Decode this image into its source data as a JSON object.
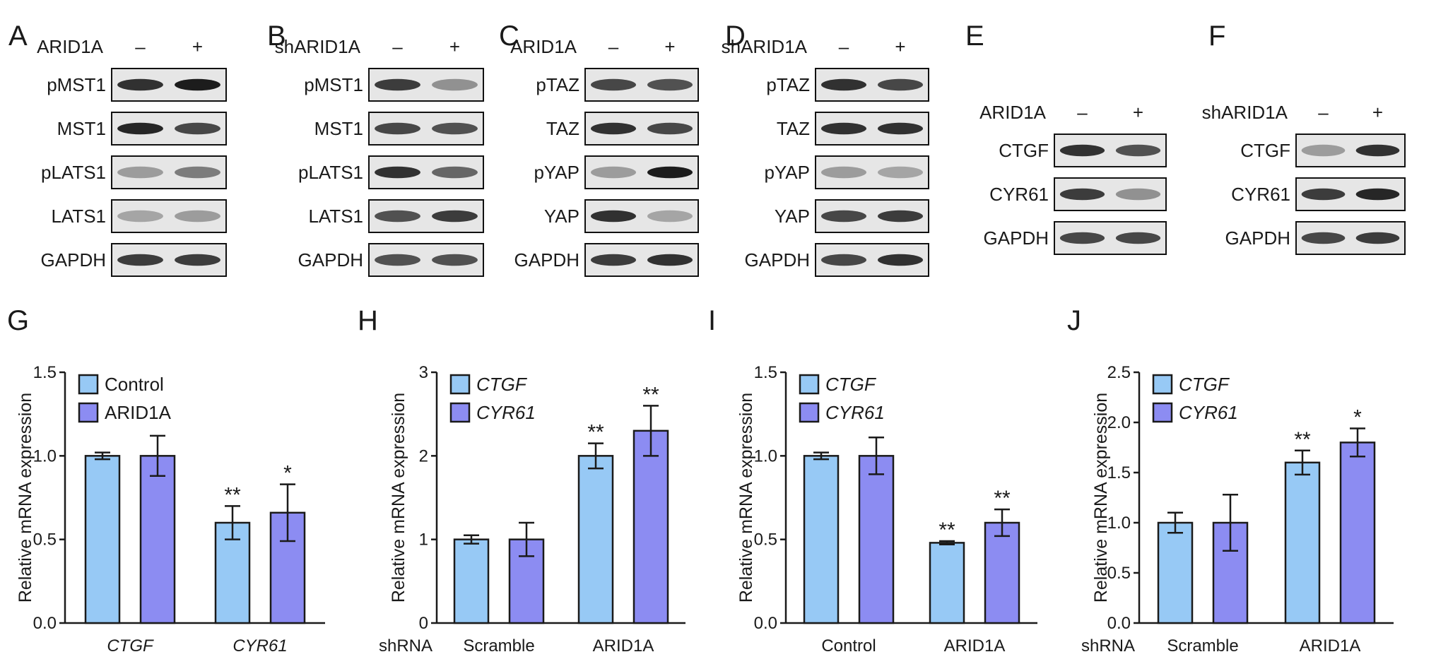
{
  "colors": {
    "light_blue": "#97c9f5",
    "purple": "#8c8cf2",
    "axis": "#1a1a1a"
  },
  "blots": [
    {
      "panel": "A",
      "treatment": "ARID1A",
      "lane_marks": [
        "–",
        "+"
      ],
      "proteins": [
        "pMST1",
        "MST1",
        "pLATS1",
        "LATS1",
        "GAPDH"
      ]
    },
    {
      "panel": "B",
      "treatment": "shARID1A",
      "lane_marks": [
        "–",
        "+"
      ],
      "proteins": [
        "pMST1",
        "MST1",
        "pLATS1",
        "LATS1",
        "GAPDH"
      ]
    },
    {
      "panel": "C",
      "treatment": "ARID1A",
      "lane_marks": [
        "–",
        "+"
      ],
      "proteins": [
        "pTAZ",
        "TAZ",
        "pYAP",
        "YAP",
        "GAPDH"
      ]
    },
    {
      "panel": "D",
      "treatment": "shARID1A",
      "lane_marks": [
        "–",
        "+"
      ],
      "proteins": [
        "pTAZ",
        "TAZ",
        "pYAP",
        "YAP",
        "GAPDH"
      ]
    },
    {
      "panel": "E",
      "treatment": "ARID1A",
      "lane_marks": [
        "–",
        "+"
      ],
      "proteins": [
        "CTGF",
        "CYR61",
        "GAPDH"
      ]
    },
    {
      "panel": "F",
      "treatment": "shARID1A",
      "lane_marks": [
        "–",
        "+"
      ],
      "proteins": [
        "CTGF",
        "CYR61",
        "GAPDH"
      ]
    }
  ],
  "chart_data": [
    {
      "panel": "G",
      "type": "bar",
      "ylabel": "Relative mRNA expression",
      "ylim": [
        0,
        1.5
      ],
      "yticks": [
        "0.0",
        "0.5",
        "1.0",
        "1.5"
      ],
      "x_prefix": "",
      "categories": [
        "CTGF",
        "CYR61"
      ],
      "categories_italic": true,
      "legend_italic": false,
      "legend_position": "top-left",
      "series": [
        {
          "name": "Control",
          "values": [
            1.0,
            0.6
          ],
          "errors": [
            0.02,
            0.1
          ],
          "sig": [
            "",
            "**"
          ]
        },
        {
          "name": "ARID1A",
          "values": [
            1.0,
            0.66
          ],
          "errors": [
            0.12,
            0.17
          ],
          "sig": [
            "",
            "*"
          ]
        }
      ]
    },
    {
      "panel": "H",
      "type": "bar",
      "ylabel": "Relative mRNA expression",
      "ylim": [
        0,
        3
      ],
      "yticks": [
        "0",
        "1",
        "2",
        "3"
      ],
      "x_prefix": "shRNA",
      "categories": [
        "Scramble",
        "ARID1A"
      ],
      "categories_italic": false,
      "legend_italic": true,
      "legend_position": "top-left",
      "series": [
        {
          "name": "CTGF",
          "values": [
            1.0,
            2.0
          ],
          "errors": [
            0.05,
            0.15
          ],
          "sig": [
            "",
            "**"
          ]
        },
        {
          "name": "CYR61",
          "values": [
            1.0,
            2.3
          ],
          "errors": [
            0.2,
            0.3
          ],
          "sig": [
            "",
            "**"
          ]
        }
      ]
    },
    {
      "panel": "I",
      "type": "bar",
      "ylabel": "Relative mRNA expression",
      "ylim": [
        0,
        1.5
      ],
      "yticks": [
        "0.0",
        "0.5",
        "1.0",
        "1.5"
      ],
      "x_prefix": "",
      "categories": [
        "Control",
        "ARID1A"
      ],
      "categories_italic": false,
      "legend_italic": true,
      "legend_position": "top-left",
      "series": [
        {
          "name": "CTGF",
          "values": [
            1.0,
            0.48
          ],
          "errors": [
            0.02,
            0.01
          ],
          "sig": [
            "",
            "**"
          ]
        },
        {
          "name": "CYR61",
          "values": [
            1.0,
            0.6
          ],
          "errors": [
            0.11,
            0.08
          ],
          "sig": [
            "",
            "**"
          ]
        }
      ]
    },
    {
      "panel": "J",
      "type": "bar",
      "ylabel": "Relative mRNA expression",
      "ylim": [
        0,
        2.5
      ],
      "yticks": [
        "0.0",
        "0.5",
        "1.0",
        "1.5",
        "2.0",
        "2.5"
      ],
      "x_prefix": "shRNA",
      "categories": [
        "Scramble",
        "ARID1A"
      ],
      "categories_italic": false,
      "legend_italic": true,
      "legend_position": "top-left",
      "series": [
        {
          "name": "CTGF",
          "values": [
            1.0,
            1.6
          ],
          "errors": [
            0.1,
            0.12
          ],
          "sig": [
            "",
            "**"
          ]
        },
        {
          "name": "CYR61",
          "values": [
            1.0,
            1.8
          ],
          "errors": [
            0.28,
            0.14
          ],
          "sig": [
            "",
            "*"
          ]
        }
      ]
    }
  ]
}
